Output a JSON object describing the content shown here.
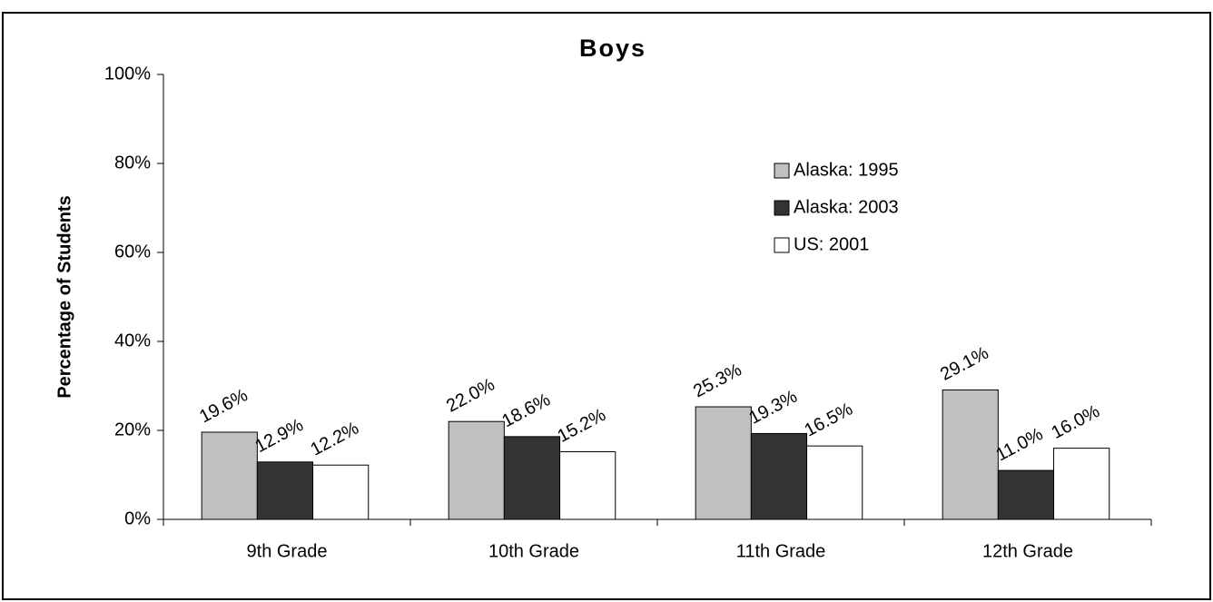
{
  "chart_data": {
    "type": "bar",
    "title": "Boys",
    "y_label": "Percentage of Students",
    "categories": [
      "9th Grade",
      "10th Grade",
      "11th Grade",
      "12th Grade"
    ],
    "series": [
      {
        "name": "Alaska: 1995",
        "color": "#c0c0c0",
        "values": [
          19.6,
          22.0,
          25.3,
          29.1
        ],
        "value_labels": [
          "19.6%",
          "22.0%",
          "25.3%",
          "29.1%"
        ]
      },
      {
        "name": "Alaska: 2003",
        "color": "#333333",
        "values": [
          12.9,
          18.6,
          19.3,
          11.0
        ],
        "value_labels": [
          "12.9%",
          "18.6%",
          "19.3%",
          "11.0%"
        ]
      },
      {
        "name": "US: 2001",
        "color": "#ffffff",
        "values": [
          12.2,
          15.2,
          16.5,
          16.0
        ],
        "value_labels": [
          "12.2%",
          "15.2%",
          "16.5%",
          "16.0%"
        ]
      }
    ],
    "ylim": [
      0,
      100
    ],
    "yticks": [
      {
        "value": 0,
        "label": "0%"
      },
      {
        "value": 20,
        "label": "20%"
      },
      {
        "value": 40,
        "label": "40%"
      },
      {
        "value": 60,
        "label": "60%"
      },
      {
        "value": 80,
        "label": "80%"
      },
      {
        "value": 100,
        "label": "100%"
      }
    ],
    "grid": false,
    "legend": "upper right"
  }
}
